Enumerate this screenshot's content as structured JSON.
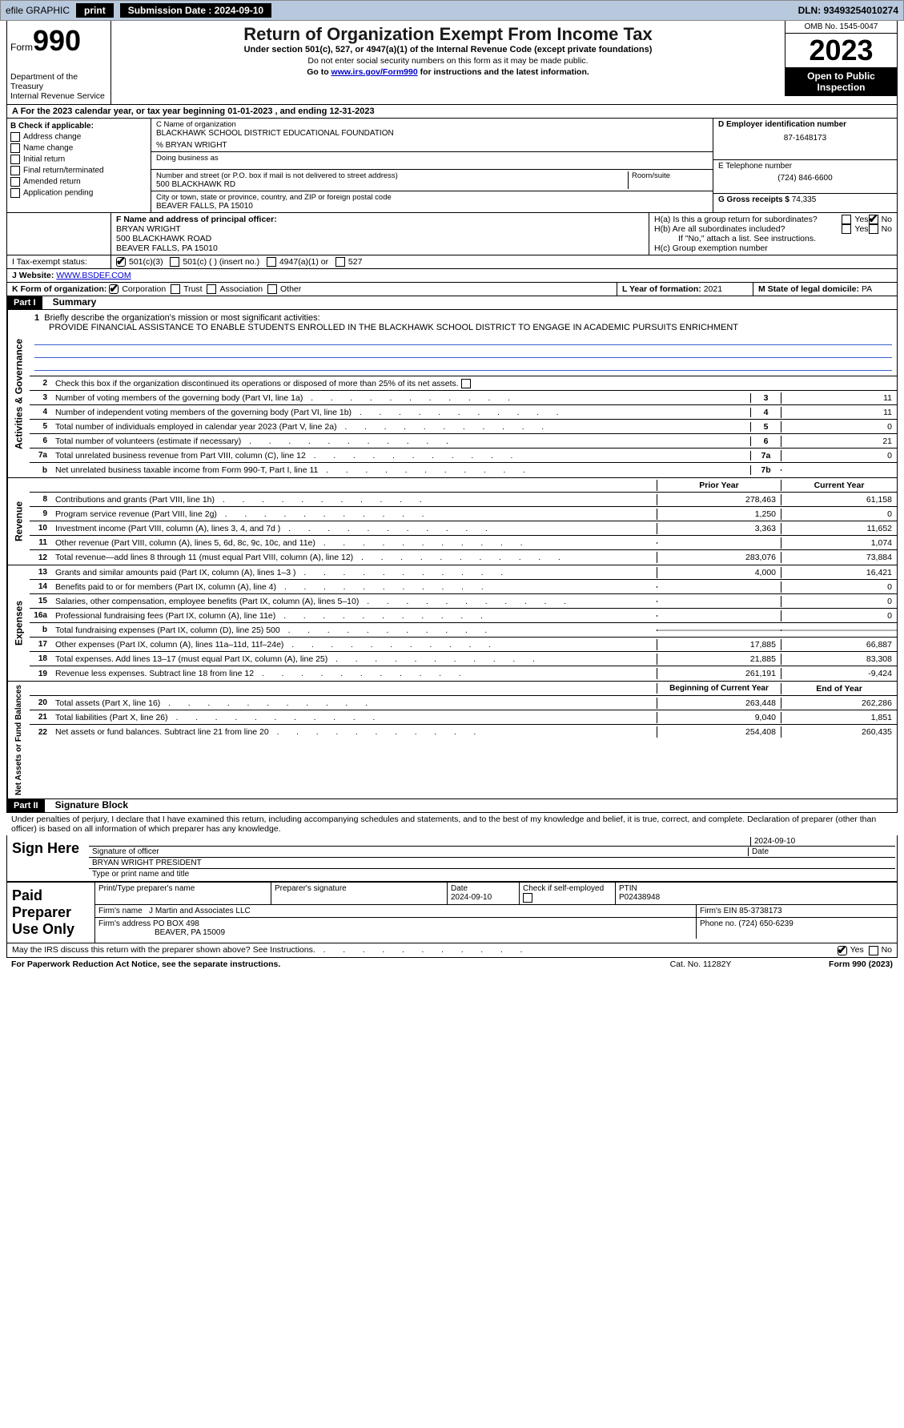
{
  "topbar": {
    "efile": "efile GRAPHIC",
    "print": "print",
    "sub_label": "Submission Date : 2024-09-10",
    "dln": "DLN: 93493254010274"
  },
  "header": {
    "form_word": "Form",
    "form_num": "990",
    "title": "Return of Organization Exempt From Income Tax",
    "subtitle": "Under section 501(c), 527, or 4947(a)(1) of the Internal Revenue Code (except private foundations)",
    "note1": "Do not enter social security numbers on this form as it may be made public.",
    "note2_pre": "Go to ",
    "note2_link": "www.irs.gov/Form990",
    "note2_post": " for instructions and the latest information.",
    "dept": "Department of the Treasury",
    "irs": "Internal Revenue Service",
    "omb": "OMB No. 1545-0047",
    "year": "2023",
    "open": "Open to Public Inspection"
  },
  "row_a": "A  For the 2023 calendar year, or tax year beginning 01-01-2023    , and ending 12-31-2023",
  "col_b": {
    "label": "B Check if applicable:",
    "items": [
      "Address change",
      "Name change",
      "Initial return",
      "Final return/terminated",
      "Amended return",
      "Application pending"
    ]
  },
  "col_c": {
    "name_label": "C Name of organization",
    "name": "BLACKHAWK SCHOOL DISTRICT EDUCATIONAL FOUNDATION",
    "care_of": "% BRYAN WRIGHT",
    "dba_label": "Doing business as",
    "addr_label": "Number and street (or P.O. box if mail is not delivered to street address)",
    "room_label": "Room/suite",
    "addr": "500 BLACKHAWK RD",
    "city_label": "City or town, state or province, country, and ZIP or foreign postal code",
    "city": "BEAVER FALLS, PA   15010"
  },
  "col_d": {
    "label": "D Employer identification number",
    "ein": "87-1648173",
    "phone_label": "E Telephone number",
    "phone": "(724) 846-6600",
    "gross_label": "G Gross receipts $ ",
    "gross": "74,335"
  },
  "row_f": {
    "label": "F  Name and address of principal officer:",
    "name": "BRYAN WRIGHT",
    "addr1": "500 BLACKHAWK ROAD",
    "addr2": "BEAVER FALLS, PA  15010"
  },
  "row_h": {
    "ha": "H(a)  Is this a group return for subordinates?",
    "hb": "H(b)  Are all subordinates included?",
    "hb_note": "If \"No,\" attach a list. See instructions.",
    "hc": "H(c)  Group exemption number ",
    "yes": "Yes",
    "no": "No"
  },
  "row_i": {
    "label": "I    Tax-exempt status:",
    "opts": [
      "501(c)(3)",
      "501(c) (   ) (insert no.)",
      "4947(a)(1) or",
      "527"
    ]
  },
  "row_j": {
    "label": "J    Website: ",
    "val": "WWW.BSDEF.COM"
  },
  "row_k": {
    "label": "K Form of organization:",
    "opts": [
      "Corporation",
      "Trust",
      "Association",
      "Other"
    ],
    "l_label": "L Year of formation: ",
    "l_val": "2021",
    "m_label": "M State of legal domicile: ",
    "m_val": "PA"
  },
  "part1": {
    "title": "Part I",
    "name": "Summary",
    "sect1": "Activities & Governance",
    "sect2": "Revenue",
    "sect3": "Expenses",
    "sect4": "Net Assets or Fund Balances",
    "line1_label": "Briefly describe the organization's mission or most significant activities:",
    "line1_text": "PROVIDE FINANCIAL ASSISTANCE TO ENABLE STUDENTS ENROLLED IN THE BLACKHAWK SCHOOL DISTRICT TO ENGAGE IN ACADEMIC PURSUITS ENRICHMENT",
    "line2": "Check this box          if the organization discontinued its operations or disposed of more than 25% of its net assets.",
    "lines_top": [
      {
        "n": "3",
        "t": "Number of voting members of the governing body (Part VI, line 1a)",
        "c": "3",
        "v": "11"
      },
      {
        "n": "4",
        "t": "Number of independent voting members of the governing body (Part VI, line 1b)",
        "c": "4",
        "v": "11"
      },
      {
        "n": "5",
        "t": "Total number of individuals employed in calendar year 2023 (Part V, line 2a)",
        "c": "5",
        "v": "0"
      },
      {
        "n": "6",
        "t": "Total number of volunteers (estimate if necessary)",
        "c": "6",
        "v": "21"
      },
      {
        "n": "7a",
        "t": "Total unrelated business revenue from Part VIII, column (C), line 12",
        "c": "7a",
        "v": "0"
      },
      {
        "n": "b",
        "t": "Net unrelated business taxable income from Form 990-T, Part I, line 11",
        "c": "7b",
        "v": ""
      }
    ],
    "prior_hdr": "Prior Year",
    "curr_hdr": "Current Year",
    "rev_lines": [
      {
        "n": "8",
        "t": "Contributions and grants (Part VIII, line 1h)",
        "p": "278,463",
        "c": "61,158"
      },
      {
        "n": "9",
        "t": "Program service revenue (Part VIII, line 2g)",
        "p": "1,250",
        "c": "0"
      },
      {
        "n": "10",
        "t": "Investment income (Part VIII, column (A), lines 3, 4, and 7d )",
        "p": "3,363",
        "c": "11,652"
      },
      {
        "n": "11",
        "t": "Other revenue (Part VIII, column (A), lines 5, 6d, 8c, 9c, 10c, and 11e)",
        "p": "",
        "c": "1,074"
      },
      {
        "n": "12",
        "t": "Total revenue—add lines 8 through 11 (must equal Part VIII, column (A), line 12)",
        "p": "283,076",
        "c": "73,884"
      }
    ],
    "exp_lines": [
      {
        "n": "13",
        "t": "Grants and similar amounts paid (Part IX, column (A), lines 1–3 )",
        "p": "4,000",
        "c": "16,421"
      },
      {
        "n": "14",
        "t": "Benefits paid to or for members (Part IX, column (A), line 4)",
        "p": "",
        "c": "0"
      },
      {
        "n": "15",
        "t": "Salaries, other compensation, employee benefits (Part IX, column (A), lines 5–10)",
        "p": "",
        "c": "0"
      },
      {
        "n": "16a",
        "t": "Professional fundraising fees (Part IX, column (A), line 11e)",
        "p": "",
        "c": "0"
      },
      {
        "n": "b",
        "t": "Total fundraising expenses (Part IX, column (D), line 25) 500",
        "p": "__SH__",
        "c": "__SH__"
      },
      {
        "n": "17",
        "t": "Other expenses (Part IX, column (A), lines 11a–11d, 11f–24e)",
        "p": "17,885",
        "c": "66,887"
      },
      {
        "n": "18",
        "t": "Total expenses. Add lines 13–17 (must equal Part IX, column (A), line 25)",
        "p": "21,885",
        "c": "83,308"
      },
      {
        "n": "19",
        "t": "Revenue less expenses. Subtract line 18 from line 12",
        "p": "261,191",
        "c": "-9,424"
      }
    ],
    "beg_hdr": "Beginning of Current Year",
    "end_hdr": "End of Year",
    "net_lines": [
      {
        "n": "20",
        "t": "Total assets (Part X, line 16)",
        "p": "263,448",
        "c": "262,286"
      },
      {
        "n": "21",
        "t": "Total liabilities (Part X, line 26)",
        "p": "9,040",
        "c": "1,851"
      },
      {
        "n": "22",
        "t": "Net assets or fund balances. Subtract line 21 from line 20",
        "p": "254,408",
        "c": "260,435"
      }
    ]
  },
  "part2": {
    "title": "Part II",
    "name": "Signature Block",
    "declaration": "Under penalties of perjury, I declare that I have examined this return, including accompanying schedules and statements, and to the best of my knowledge and belief, it is true, correct, and complete. Declaration of preparer (other than officer) is based on all information of which preparer has any knowledge."
  },
  "sign": {
    "here": "Sign Here",
    "sig_label": "Signature of officer",
    "date_label": "Date",
    "date": "2024-09-10",
    "name": "BRYAN WRIGHT  PRESIDENT",
    "type_label": "Type or print name and title"
  },
  "paid": {
    "label": "Paid Preparer Use Only",
    "p_name_label": "Print/Type preparer's name",
    "p_sig_label": "Preparer's signature",
    "p_date_label": "Date",
    "p_date": "2024-09-10",
    "check_label": "Check         if self-employed",
    "ptin_label": "PTIN",
    "ptin": "P02438948",
    "firm_name_label": "Firm's name    ",
    "firm_name": "J Martin and Associates LLC",
    "firm_ein_label": "Firm's EIN  ",
    "firm_ein": "85-3738173",
    "firm_addr_label": "Firm's address ",
    "firm_addr1": "PO BOX 498",
    "firm_addr2": "BEAVER, PA  15009",
    "phone_label": "Phone no. ",
    "phone": "(724) 650-6239"
  },
  "discuss": "May the IRS discuss this return with the preparer shown above? See Instructions.",
  "footer": {
    "notice": "For Paperwork Reduction Act Notice, see the separate instructions.",
    "cat": "Cat. No. 11282Y",
    "form": "Form 990 (2023)"
  }
}
